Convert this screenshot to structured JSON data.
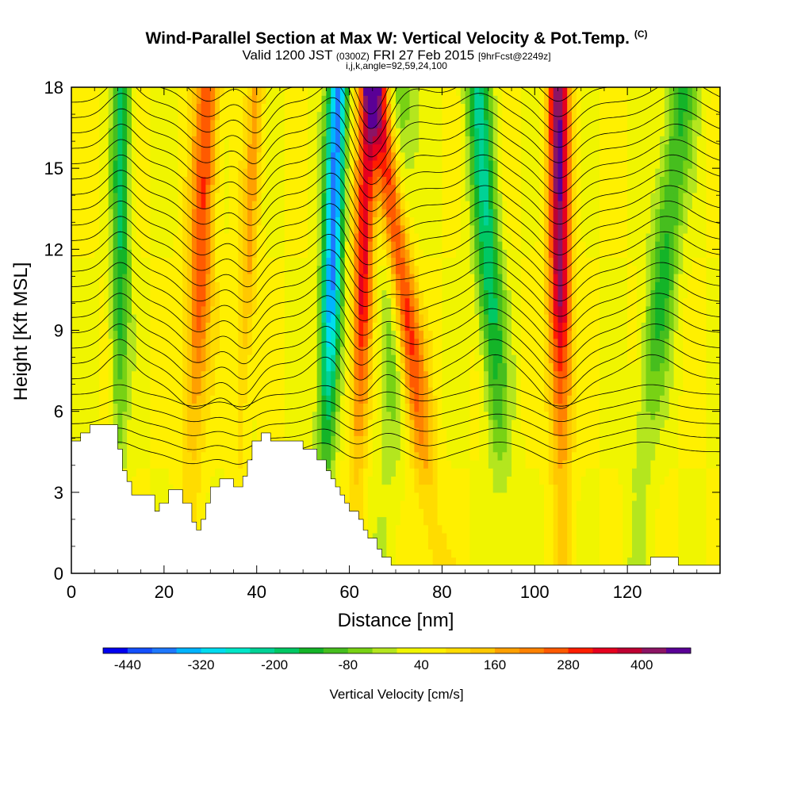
{
  "header": {
    "title_main": "Wind-Parallel Section at Max W: Vertical Velocity & Pot.Temp.",
    "title_mark": "(C)",
    "valid_prefix": "Valid 1200 JST",
    "valid_utc": "(0300Z)",
    "valid_date": "FRI 27 Feb 2015",
    "forecast": "[9hrFcst@2249z]",
    "indices": "i,j,k,angle=92,59,24,100"
  },
  "chart_data": {
    "type": "heatmap",
    "xlabel": "Distance [nm]",
    "ylabel": "Height [Kft MSL]",
    "xlim": [
      0,
      140
    ],
    "ylim": [
      0,
      18
    ],
    "x_ticks": [
      0,
      20,
      40,
      60,
      80,
      100,
      120
    ],
    "y_ticks": [
      0,
      3,
      6,
      9,
      12,
      15,
      18
    ],
    "colorbar": {
      "label": "Vertical Velocity [cm/s]",
      "tick_labels": [
        "-440",
        "-320",
        "-200",
        "-80",
        "40",
        "160",
        "280",
        "400"
      ],
      "min": -480,
      "max": 480,
      "step": 40,
      "colors": [
        "#0000f0",
        "#1450ff",
        "#1e78ff",
        "#00b4ff",
        "#00dcf0",
        "#00e6c8",
        "#00d296",
        "#00c864",
        "#14b428",
        "#46be1e",
        "#78d214",
        "#b4e61e",
        "#f0f500",
        "#fff000",
        "#ffdc00",
        "#ffc800",
        "#ffa000",
        "#ff8200",
        "#ff5a00",
        "#ff1e00",
        "#e6001e",
        "#be0032",
        "#8c1464",
        "#5a0096"
      ]
    },
    "terrain_heights_kft": [
      [
        0,
        4.9
      ],
      [
        2,
        4.9
      ],
      [
        2,
        5.2
      ],
      [
        4,
        5.2
      ],
      [
        4,
        5.5
      ],
      [
        10,
        5.5
      ],
      [
        10,
        4.6
      ],
      [
        11,
        4.6
      ],
      [
        11,
        3.8
      ],
      [
        12,
        3.8
      ],
      [
        12,
        3.4
      ],
      [
        13,
        3.4
      ],
      [
        13,
        2.9
      ],
      [
        18,
        2.9
      ],
      [
        18,
        2.3
      ],
      [
        19,
        2.3
      ],
      [
        19,
        2.6
      ],
      [
        21,
        2.6
      ],
      [
        21,
        3.1
      ],
      [
        24,
        3.1
      ],
      [
        24,
        2.6
      ],
      [
        26,
        2.6
      ],
      [
        26,
        1.9
      ],
      [
        27,
        1.9
      ],
      [
        27,
        1.6
      ],
      [
        28,
        1.6
      ],
      [
        28,
        2.0
      ],
      [
        29,
        2.0
      ],
      [
        29,
        2.6
      ],
      [
        30,
        2.6
      ],
      [
        30,
        3.2
      ],
      [
        32,
        3.2
      ],
      [
        32,
        3.5
      ],
      [
        35,
        3.5
      ],
      [
        35,
        3.2
      ],
      [
        37,
        3.2
      ],
      [
        37,
        3.6
      ],
      [
        38,
        3.6
      ],
      [
        38,
        4.2
      ],
      [
        39,
        4.2
      ],
      [
        39,
        4.9
      ],
      [
        41,
        4.9
      ],
      [
        41,
        5.2
      ],
      [
        43,
        5.2
      ],
      [
        43,
        4.9
      ],
      [
        50,
        4.9
      ],
      [
        50,
        4.6
      ],
      [
        53,
        4.6
      ],
      [
        53,
        4.2
      ],
      [
        55,
        4.2
      ],
      [
        55,
        3.8
      ],
      [
        56,
        3.8
      ],
      [
        56,
        3.5
      ],
      [
        57,
        3.5
      ],
      [
        57,
        3.2
      ],
      [
        58,
        3.2
      ],
      [
        58,
        2.9
      ],
      [
        59,
        2.9
      ],
      [
        59,
        2.6
      ],
      [
        60,
        2.6
      ],
      [
        60,
        2.3
      ],
      [
        62,
        2.3
      ],
      [
        62,
        2.0
      ],
      [
        63,
        2.0
      ],
      [
        63,
        1.6
      ],
      [
        64,
        1.6
      ],
      [
        64,
        1.3
      ],
      [
        66,
        1.3
      ],
      [
        66,
        0.9
      ],
      [
        67,
        0.9
      ],
      [
        67,
        0.6
      ],
      [
        69,
        0.6
      ],
      [
        69,
        0.3
      ],
      [
        125,
        0.3
      ],
      [
        125,
        0.6
      ],
      [
        131,
        0.6
      ],
      [
        131,
        0.3
      ],
      [
        140,
        0.3
      ],
      [
        140,
        0
      ]
    ],
    "updraft_columns": [
      {
        "x_base": 79,
        "lean_per_kft": -0.72,
        "half_width_nm": 2.8,
        "peak_cm_s": 360
      },
      {
        "x_base": 106,
        "lean_per_kft": -0.05,
        "half_width_nm": 2.4,
        "peak_cm_s": 380
      },
      {
        "x_base": 61,
        "lean_per_kft": 0.18,
        "half_width_nm": 2.2,
        "peak_cm_s": 300
      },
      {
        "x_base": 25,
        "lean_per_kft": 0.25,
        "half_width_nm": 2.6,
        "peak_cm_s": 240
      },
      {
        "x_base": 35,
        "lean_per_kft": 0.28,
        "half_width_nm": 1.8,
        "peak_cm_s": 130
      }
    ],
    "downdraft_columns": [
      {
        "x_base": 54,
        "lean_per_kft": 0.2,
        "half_width_nm": 2.2,
        "peak_cm_s": -420
      },
      {
        "x_base": 68,
        "lean_per_kft": 0.15,
        "half_width_nm": 3.5,
        "peak_cm_s": -150
      },
      {
        "x_base": 94,
        "lean_per_kft": -0.35,
        "half_width_nm": 2.8,
        "peak_cm_s": -230
      },
      {
        "x_base": 121,
        "lean_per_kft": 0.6,
        "half_width_nm": 3.2,
        "peak_cm_s": -170
      },
      {
        "x_base": 10,
        "lean_per_kft": 0.05,
        "half_width_nm": 2.0,
        "peak_cm_s": -200
      }
    ],
    "isentrope_levels": 26
  }
}
